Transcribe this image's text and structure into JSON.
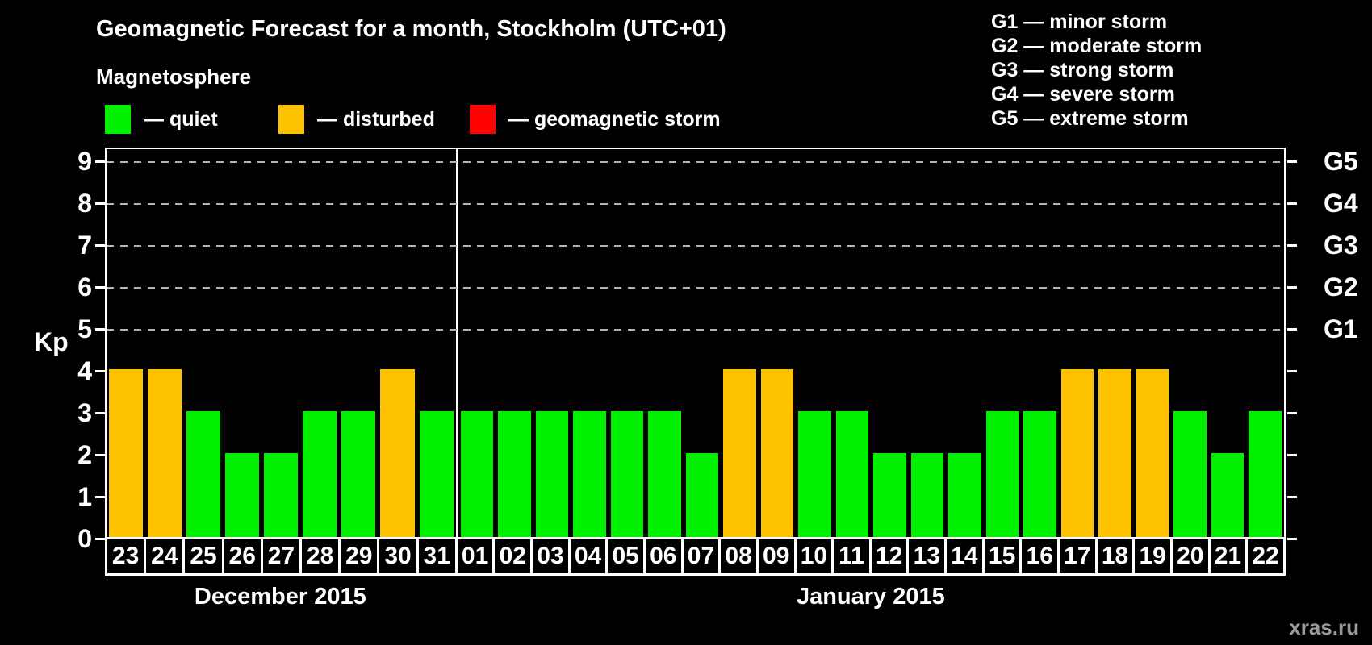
{
  "header": {
    "title": "Geomagnetic Forecast for a month, Stockholm (UTC+01)",
    "subtitle": "Magnetosphere"
  },
  "legend": {
    "items": [
      {
        "label": "— quiet",
        "color": "#00F000"
      },
      {
        "label": "— disturbed",
        "color": "#FFC200"
      },
      {
        "label": "— geomagnetic storm",
        "color": "#FF0000"
      }
    ]
  },
  "g_legend": {
    "items": [
      "G1 — minor storm",
      "G2 — moderate storm",
      "G3 — strong storm",
      "G4 — severe storm",
      "G5 — extreme storm"
    ]
  },
  "watermark": "xras.ru",
  "chart_data": {
    "type": "bar",
    "title": "Geomagnetic Forecast for a month, Stockholm (UTC+01)",
    "ylabel": "Kp",
    "ylim": [
      0,
      9.4
    ],
    "yticks": [
      0,
      1,
      2,
      3,
      4,
      5,
      6,
      7,
      8,
      9
    ],
    "gridlines": [
      5,
      6,
      7,
      8,
      9
    ],
    "grid": "dashed horizontal lines at Kp 5-9 only",
    "legend_position": "top-left and top-right",
    "right_axis_labels": [
      {
        "kp": 5,
        "label": "G1"
      },
      {
        "kp": 6,
        "label": "G2"
      },
      {
        "kp": 7,
        "label": "G3"
      },
      {
        "kp": 8,
        "label": "G4"
      },
      {
        "kp": 9,
        "label": "G5"
      }
    ],
    "color_map": {
      "quiet": "#00F000",
      "disturbed": "#FFC200",
      "storm": "#FF0000"
    },
    "months": [
      {
        "label": "December 2015",
        "days": [
          "23",
          "24",
          "25",
          "26",
          "27",
          "28",
          "29",
          "30",
          "31"
        ],
        "values": [
          4,
          4,
          3,
          2,
          2,
          3,
          3,
          4,
          3
        ],
        "states": [
          "disturbed",
          "disturbed",
          "quiet",
          "quiet",
          "quiet",
          "quiet",
          "quiet",
          "disturbed",
          "quiet"
        ]
      },
      {
        "label": "January 2015",
        "days": [
          "01",
          "02",
          "03",
          "04",
          "05",
          "06",
          "07",
          "08",
          "09",
          "10",
          "11",
          "12",
          "13",
          "14",
          "15",
          "16",
          "17",
          "18",
          "19",
          "20",
          "21",
          "22"
        ],
        "values": [
          3,
          3,
          3,
          3,
          3,
          3,
          2,
          4,
          4,
          3,
          3,
          2,
          2,
          2,
          3,
          3,
          4,
          4,
          4,
          3,
          2,
          3
        ],
        "states": [
          "quiet",
          "quiet",
          "quiet",
          "quiet",
          "quiet",
          "quiet",
          "quiet",
          "disturbed",
          "disturbed",
          "quiet",
          "quiet",
          "quiet",
          "quiet",
          "quiet",
          "quiet",
          "quiet",
          "disturbed",
          "disturbed",
          "disturbed",
          "quiet",
          "quiet",
          "quiet"
        ]
      }
    ]
  }
}
